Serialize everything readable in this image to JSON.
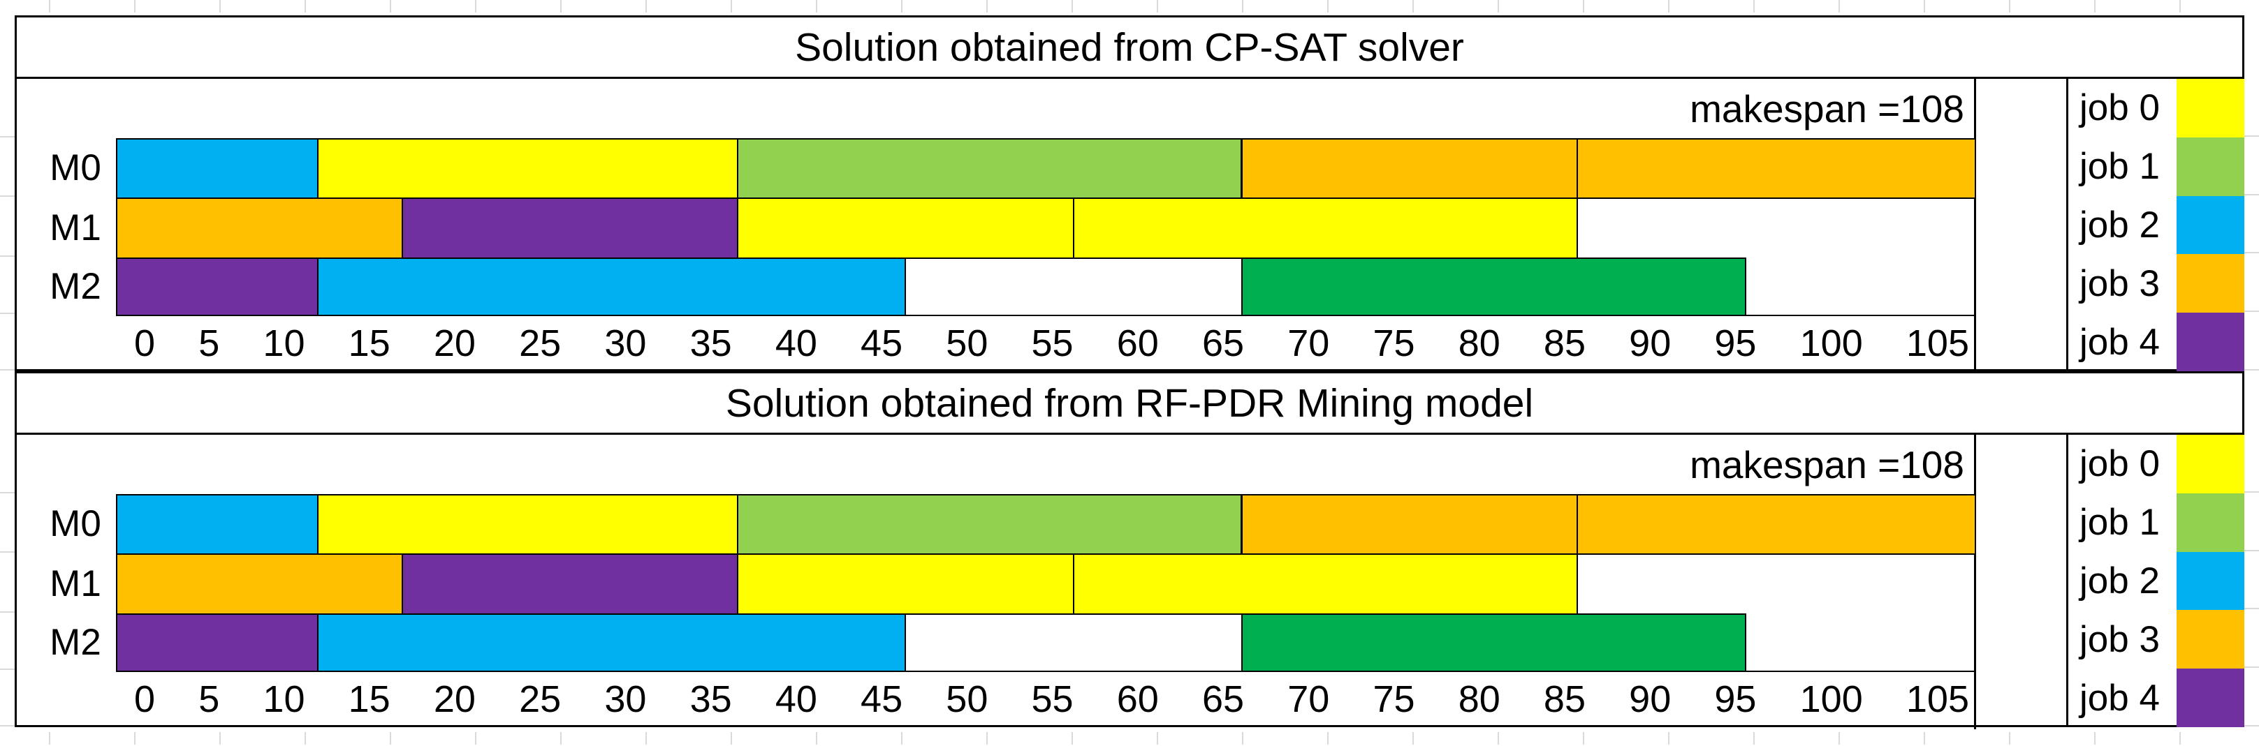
{
  "figure": {
    "background": "#ffffff",
    "gridline_color": "#d9d9d9",
    "border_color": "#000000"
  },
  "chart_data": [
    {
      "type": "gantt",
      "title": "Solution obtained from CP-SAT solver",
      "makespan_label": "makespan =108",
      "makespan": 108,
      "xlim": [
        0,
        110.6
      ],
      "axis_ticks": [
        "0",
        "5",
        "10",
        "15",
        "20",
        "25",
        "30",
        "35",
        "40",
        "45",
        "50",
        "55",
        "60",
        "65",
        "70",
        "75",
        "80",
        "85",
        "90",
        "95",
        "100",
        "105"
      ],
      "machines": [
        {
          "name": "M0",
          "segments": [
            {
              "job": "job 2",
              "start": 0,
              "end": 12,
              "color": "#00B0F0"
            },
            {
              "job": "job 0",
              "start": 12,
              "end": 37,
              "color": "#FFFF00"
            },
            {
              "job": "job 1",
              "start": 37,
              "end": 67,
              "color": "#92D050"
            },
            {
              "job": "job 3",
              "start": 67,
              "end": 87,
              "color": "#FFC000"
            },
            {
              "job": "job 3",
              "start": 87,
              "end": 108,
              "color": "#FFC000",
              "to_edge": true
            }
          ]
        },
        {
          "name": "M1",
          "segments": [
            {
              "job": "job 3",
              "start": 0,
              "end": 17,
              "color": "#FFC000"
            },
            {
              "job": "job 4",
              "start": 17,
              "end": 37,
              "color": "#7030A0"
            },
            {
              "job": "job 0",
              "start": 37,
              "end": 57,
              "color": "#FFFF00"
            },
            {
              "job": "job 0",
              "start": 57,
              "end": 87,
              "color": "#FFFF00"
            }
          ]
        },
        {
          "name": "M2",
          "segments": [
            {
              "job": "job 4",
              "start": 0,
              "end": 12,
              "color": "#7030A0"
            },
            {
              "job": "job 2",
              "start": 12,
              "end": 47,
              "color": "#00B0F0"
            },
            {
              "job": "job 1",
              "start": 67,
              "end": 97,
              "color": "#00B050"
            }
          ]
        }
      ],
      "legend": [
        {
          "label": "job 0",
          "color": "#FFFF00"
        },
        {
          "label": "job 1",
          "color": "#92D050"
        },
        {
          "label": "job 2",
          "color": "#00B0F0"
        },
        {
          "label": "job 3",
          "color": "#FFC000"
        },
        {
          "label": "job 4",
          "color": "#7030A0"
        }
      ]
    },
    {
      "type": "gantt",
      "title": "Solution obtained from RF-PDR Mining model",
      "makespan_label": "makespan =108",
      "makespan": 108,
      "xlim": [
        0,
        110.6
      ],
      "axis_ticks": [
        "0",
        "5",
        "10",
        "15",
        "20",
        "25",
        "30",
        "35",
        "40",
        "45",
        "50",
        "55",
        "60",
        "65",
        "70",
        "75",
        "80",
        "85",
        "90",
        "95",
        "100",
        "105"
      ],
      "machines": [
        {
          "name": "M0",
          "segments": [
            {
              "job": "job 2",
              "start": 0,
              "end": 12,
              "color": "#00B0F0"
            },
            {
              "job": "job 0",
              "start": 12,
              "end": 37,
              "color": "#FFFF00"
            },
            {
              "job": "job 1",
              "start": 37,
              "end": 67,
              "color": "#92D050"
            },
            {
              "job": "job 3",
              "start": 67,
              "end": 87,
              "color": "#FFC000"
            },
            {
              "job": "job 3",
              "start": 87,
              "end": 108,
              "color": "#FFC000",
              "to_edge": true
            }
          ]
        },
        {
          "name": "M1",
          "segments": [
            {
              "job": "job 3",
              "start": 0,
              "end": 17,
              "color": "#FFC000"
            },
            {
              "job": "job 4",
              "start": 17,
              "end": 37,
              "color": "#7030A0"
            },
            {
              "job": "job 0",
              "start": 37,
              "end": 57,
              "color": "#FFFF00"
            },
            {
              "job": "job 0",
              "start": 57,
              "end": 87,
              "color": "#FFFF00"
            }
          ]
        },
        {
          "name": "M2",
          "segments": [
            {
              "job": "job 4",
              "start": 0,
              "end": 12,
              "color": "#7030A0"
            },
            {
              "job": "job 2",
              "start": 12,
              "end": 47,
              "color": "#00B0F0"
            },
            {
              "job": "job 1",
              "start": 67,
              "end": 97,
              "color": "#00B050"
            }
          ]
        }
      ],
      "legend": [
        {
          "label": "job 0",
          "color": "#FFFF00"
        },
        {
          "label": "job 1",
          "color": "#92D050"
        },
        {
          "label": "job 2",
          "color": "#00B0F0"
        },
        {
          "label": "job 3",
          "color": "#FFC000"
        },
        {
          "label": "job 4",
          "color": "#7030A0"
        }
      ]
    }
  ]
}
